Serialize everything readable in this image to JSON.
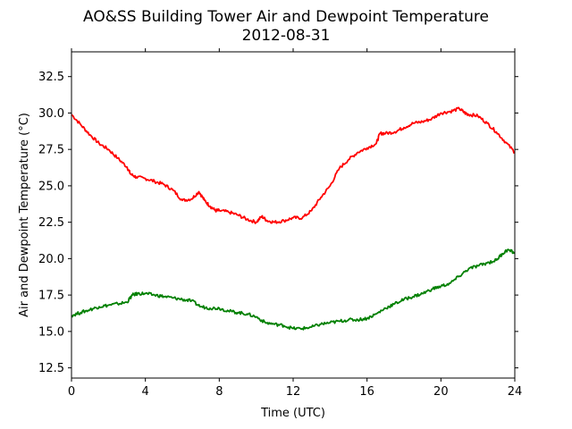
{
  "chart_data": {
    "type": "line",
    "title": "AO&SS Building Tower Air and Dewpoint Temperature",
    "subtitle": "2012-08-31",
    "xlabel": "Time (UTC)",
    "ylabel": "Air and Dewpoint Temperature (°C)",
    "xlim": [
      0,
      24
    ],
    "ylim": [
      11.8,
      34.2
    ],
    "grid": false,
    "xticks": [
      0,
      4,
      8,
      12,
      16,
      20,
      24
    ],
    "xtick_labels": [
      "0",
      "4",
      "8",
      "12",
      "16",
      "20",
      "24"
    ],
    "yticks": [
      12.5,
      15.0,
      17.5,
      20.0,
      22.5,
      25.0,
      27.5,
      30.0,
      32.5
    ],
    "ytick_labels": [
      "12.5",
      "15.0",
      "17.5",
      "20.0",
      "22.5",
      "25.0",
      "27.5",
      "30.0",
      "32.5"
    ],
    "series": [
      {
        "color": "#ff0000",
        "x": [
          0,
          0.5,
          1,
          1.5,
          2,
          2.5,
          3,
          3.2,
          3.5,
          4,
          4.5,
          5,
          5.5,
          6,
          6.5,
          6.9,
          7.2,
          7.5,
          7.8,
          8,
          8.5,
          9,
          9.5,
          10,
          10.3,
          10.6,
          11,
          11.5,
          12,
          12.5,
          13,
          13.5,
          14,
          14.5,
          15,
          15.5,
          16,
          16.5,
          16.7,
          17,
          17.5,
          18,
          18.5,
          19,
          19.5,
          20,
          20.5,
          21,
          21.3,
          21.5,
          22,
          22.5,
          23,
          23.5,
          24
        ],
        "values": [
          29.9,
          29.2,
          28.5,
          27.9,
          27.5,
          26.9,
          26.3,
          25.8,
          25.6,
          25.5,
          25.3,
          25.1,
          24.7,
          24.0,
          24.1,
          24.6,
          24.0,
          23.6,
          23.3,
          23.3,
          23.2,
          23.0,
          22.7,
          22.5,
          22.9,
          22.6,
          22.5,
          22.6,
          22.8,
          22.8,
          23.3,
          24.2,
          25.0,
          26.2,
          26.8,
          27.3,
          27.6,
          27.9,
          28.6,
          28.6,
          28.7,
          29.0,
          29.3,
          29.4,
          29.6,
          30.0,
          30.1,
          30.3,
          30.0,
          29.9,
          29.8,
          29.3,
          28.7,
          28.0,
          27.3
        ]
      },
      {
        "color": "#008000",
        "x": [
          0,
          0.5,
          1,
          1.5,
          2,
          2.5,
          3,
          3.3,
          3.6,
          4,
          4.5,
          5,
          5.5,
          6,
          6.5,
          7,
          7.5,
          8,
          8.5,
          9,
          9.5,
          10,
          10.5,
          11,
          11.5,
          12,
          12.5,
          13,
          13.5,
          14,
          14.5,
          15,
          15.5,
          16,
          16.5,
          17,
          17.5,
          18,
          18.5,
          19,
          19.5,
          20,
          20.5,
          21,
          21.5,
          22,
          22.5,
          23,
          23.3,
          23.6,
          24
        ],
        "values": [
          16.1,
          16.3,
          16.5,
          16.7,
          16.8,
          16.9,
          17.0,
          17.5,
          17.6,
          17.6,
          17.5,
          17.4,
          17.3,
          17.2,
          17.1,
          16.7,
          16.6,
          16.6,
          16.4,
          16.3,
          16.2,
          16.0,
          15.6,
          15.5,
          15.4,
          15.2,
          15.2,
          15.3,
          15.5,
          15.6,
          15.7,
          15.8,
          15.8,
          15.9,
          16.2,
          16.6,
          16.9,
          17.2,
          17.4,
          17.6,
          17.9,
          18.1,
          18.3,
          18.8,
          19.3,
          19.5,
          19.7,
          19.9,
          20.3,
          20.6,
          20.4
        ]
      }
    ]
  }
}
